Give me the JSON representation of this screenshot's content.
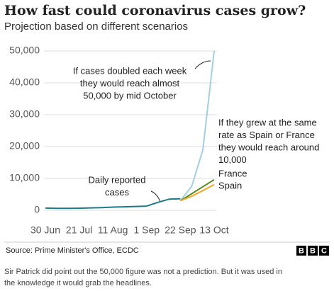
{
  "chart_data": {
    "type": "line",
    "title": "How fast could coronavirus cases grow?",
    "subtitle": "Projection based on different scenarios",
    "x": [
      "30 Jun",
      "7 Jul",
      "14 Jul",
      "21 Jul",
      "28 Jul",
      "4 Aug",
      "11 Aug",
      "18 Aug",
      "25 Aug",
      "1 Sep",
      "8 Sep",
      "15 Sep",
      "22 Sep",
      "29 Sep",
      "6 Oct",
      "13 Oct"
    ],
    "xlim": [
      "30 Jun",
      "13 Oct"
    ],
    "xticks": [
      "30 Jun",
      "21 Jul",
      "11 Aug",
      "1 Sep",
      "22 Sep",
      "13 Oct"
    ],
    "ylim": [
      0,
      50000
    ],
    "yticks": [
      0,
      {
        "value": 10000,
        "label": "10,000"
      },
      {
        "value": 20000,
        "label": "20,000"
      },
      {
        "value": 30000,
        "label": "30,000"
      },
      {
        "value": 40000,
        "label": "40,000"
      },
      {
        "value": 50000,
        "label": "50,000"
      }
    ],
    "grid": true,
    "series": [
      {
        "name": "Daily reported cases",
        "color": "#1d7a8a",
        "values": [
          700,
          600,
          600,
          650,
          750,
          850,
          1000,
          1100,
          1200,
          1300,
          2500,
          3500,
          3600,
          null,
          null,
          null
        ]
      },
      {
        "name": "Doubling each week",
        "color": "#a3cfe0",
        "values": [
          null,
          null,
          null,
          null,
          null,
          null,
          null,
          null,
          null,
          null,
          null,
          null,
          3000,
          7500,
          19000,
          50000
        ]
      },
      {
        "name": "France",
        "color": "#588b1c",
        "values": [
          null,
          null,
          null,
          null,
          null,
          null,
          null,
          null,
          null,
          null,
          null,
          null,
          3000,
          5200,
          7400,
          9600
        ]
      },
      {
        "name": "Spain",
        "color": "#f6a628",
        "values": [
          null,
          null,
          null,
          null,
          null,
          null,
          null,
          null,
          null,
          null,
          null,
          null,
          3000,
          4400,
          6200,
          8100
        ]
      }
    ],
    "annotations": [
      {
        "lines": [
          "If cases doubled each week",
          "they would reach almost",
          "50,000 by mid October"
        ]
      },
      {
        "lines": [
          "If they grew at the same",
          "rate as Spain or France",
          "they would reach around",
          "10,000"
        ]
      },
      {
        "lines": [
          "Daily reported",
          "cases"
        ]
      }
    ]
  },
  "footer": {
    "source": "Source: Prime Minister's Office, ECDC",
    "logo": [
      "B",
      "B",
      "C"
    ],
    "caption": [
      "Sir Patrick did point out the 50,000 figure was not a prediction. But it was used in",
      "the knowledge it would grab the headlines."
    ]
  }
}
